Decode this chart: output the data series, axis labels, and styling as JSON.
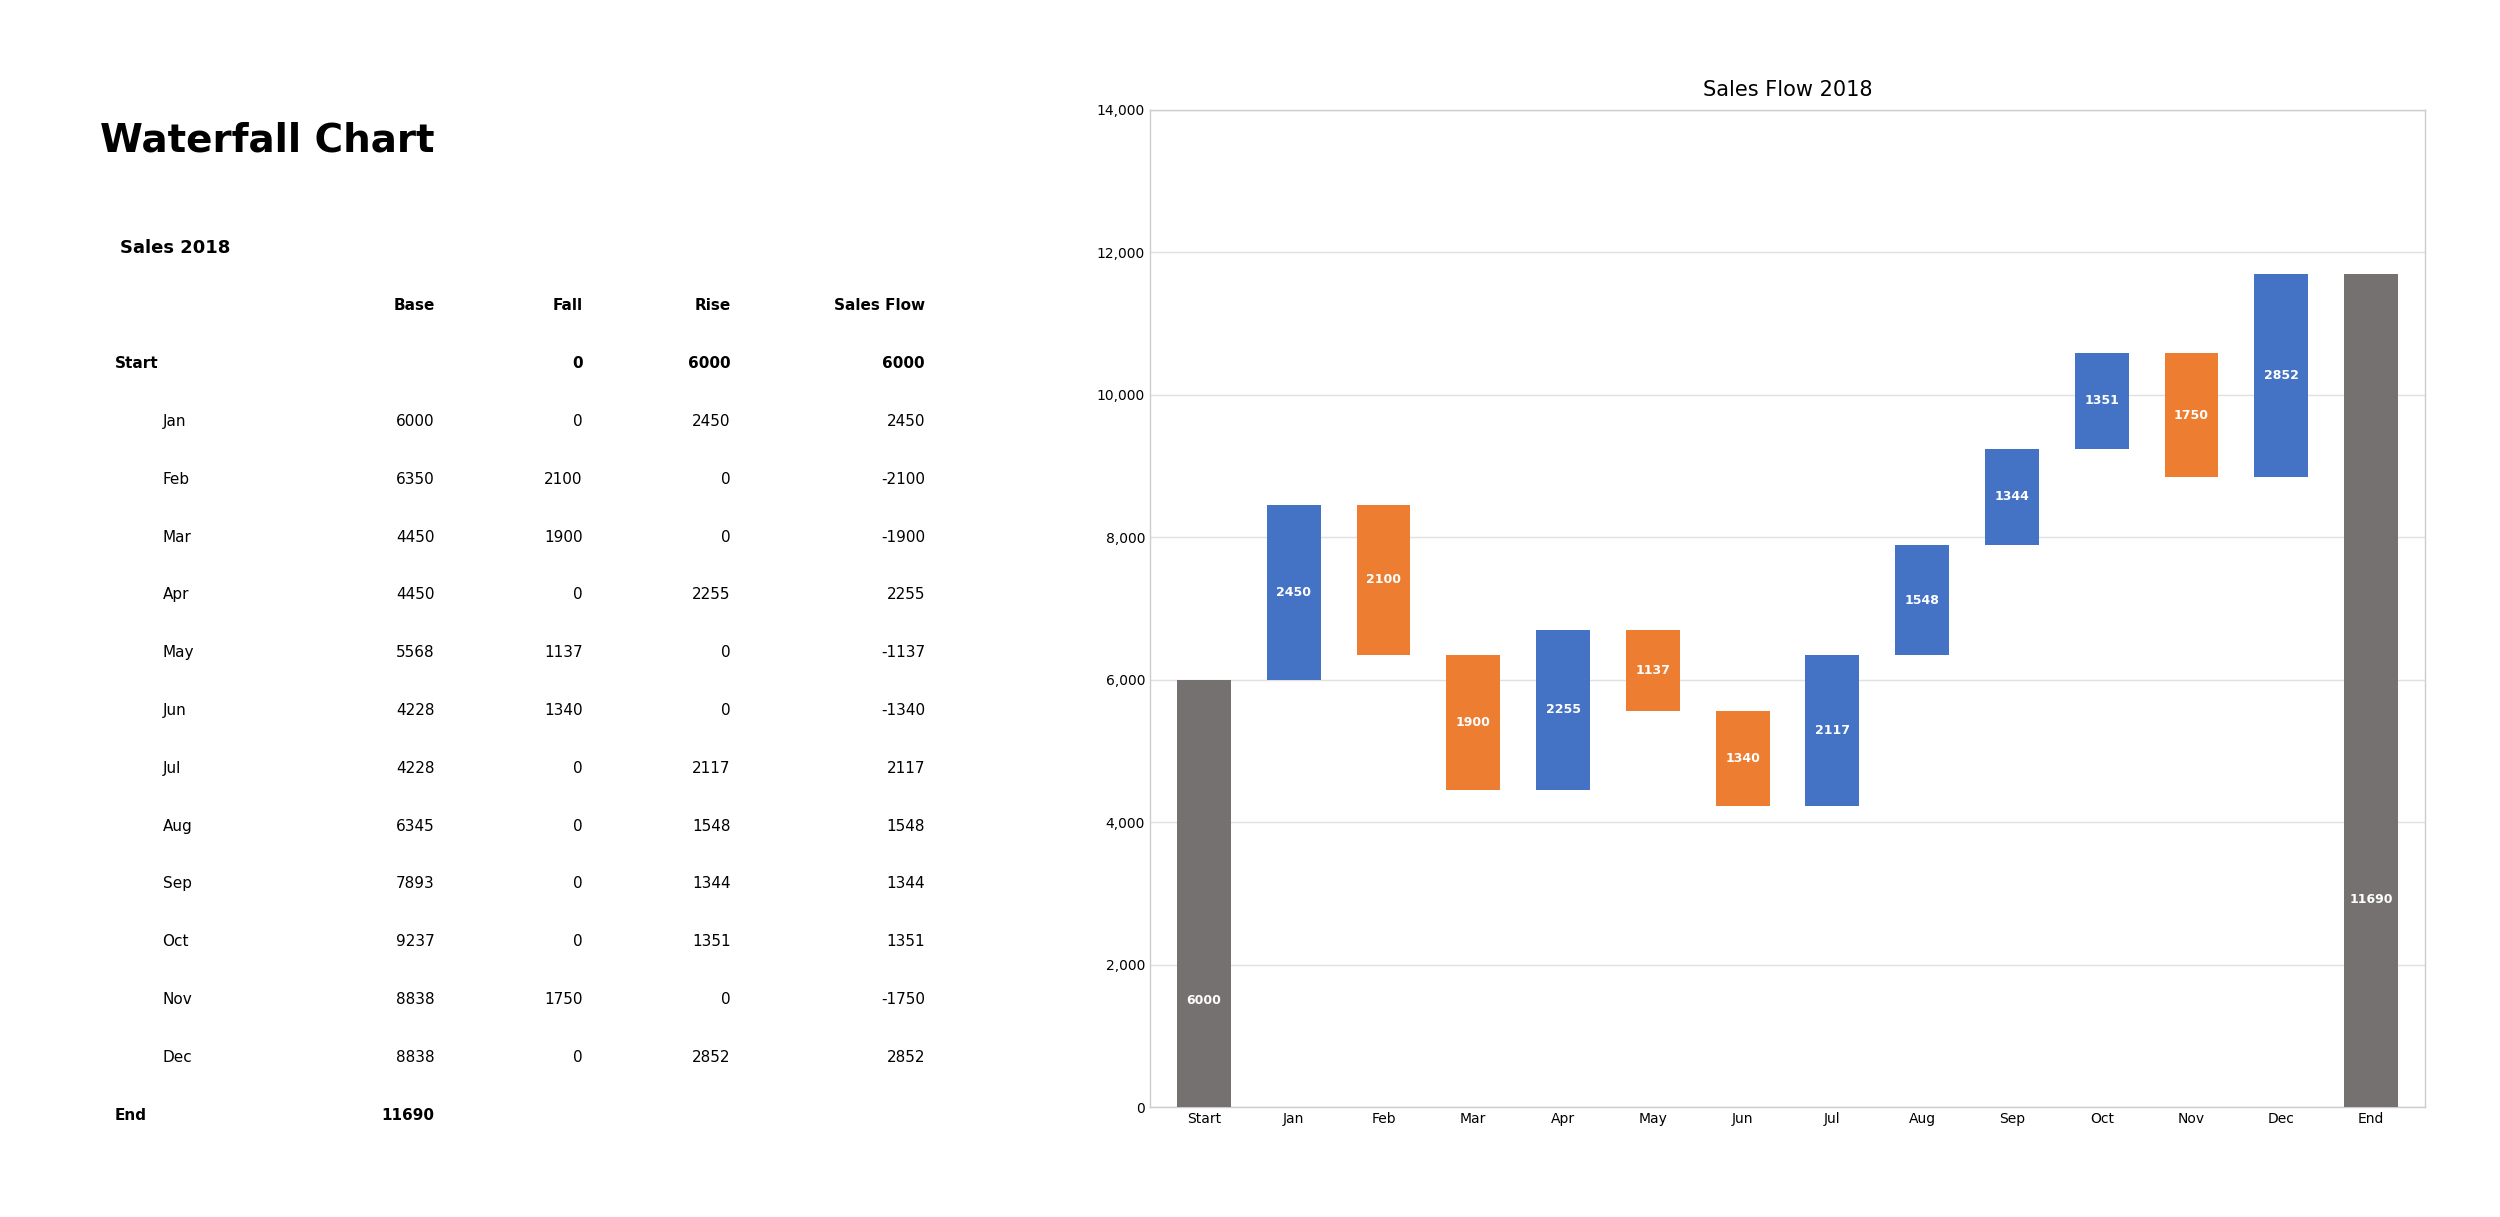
{
  "title": "Waterfall Chart",
  "table_title": "Sales 2018",
  "chart_title": "Sales Flow 2018",
  "categories": [
    "Start",
    "Jan",
    "Feb",
    "Mar",
    "Apr",
    "May",
    "Jun",
    "Jul",
    "Aug",
    "Sep",
    "Oct",
    "Nov",
    "Dec",
    "End"
  ],
  "base": [
    0,
    6000,
    6350,
    4450,
    4450,
    5568,
    4228,
    4228,
    6345,
    7893,
    9237,
    8838,
    8838,
    0
  ],
  "fall": [
    0,
    0,
    2100,
    1900,
    0,
    1137,
    1340,
    0,
    0,
    0,
    0,
    1750,
    0,
    0
  ],
  "rise": [
    6000,
    2450,
    0,
    0,
    2255,
    0,
    0,
    2117,
    1548,
    1344,
    1351,
    0,
    2852,
    11690
  ],
  "table_rows": [
    [
      "Start",
      "",
      "0",
      "6000",
      "6000"
    ],
    [
      "Jan",
      "6000",
      "0",
      "2450",
      "2450"
    ],
    [
      "Feb",
      "6350",
      "2100",
      "0",
      "-2100"
    ],
    [
      "Mar",
      "4450",
      "1900",
      "0",
      "-1900"
    ],
    [
      "Apr",
      "4450",
      "0",
      "2255",
      "2255"
    ],
    [
      "May",
      "5568",
      "1137",
      "0",
      "-1137"
    ],
    [
      "Jun",
      "4228",
      "1340",
      "0",
      "-1340"
    ],
    [
      "Jul",
      "4228",
      "0",
      "2117",
      "2117"
    ],
    [
      "Aug",
      "6345",
      "0",
      "1548",
      "1548"
    ],
    [
      "Sep",
      "7893",
      "0",
      "1344",
      "1344"
    ],
    [
      "Oct",
      "9237",
      "0",
      "1351",
      "1351"
    ],
    [
      "Nov",
      "8838",
      "1750",
      "0",
      "-1750"
    ],
    [
      "Dec",
      "8838",
      "0",
      "2852",
      "2852"
    ],
    [
      "End",
      "11690",
      "",
      "",
      ""
    ]
  ],
  "col_headers": [
    "",
    "Base",
    "Fall",
    "Rise",
    "Sales Flow"
  ],
  "gray_color": "#767171",
  "rise_color": "#4472C4",
  "fall_color": "#ED7D31",
  "table_header_bg": "#A6A6A6",
  "row_bg_start_end": "#C9C9C9",
  "row_bg_white": "#FFFFFF",
  "row_bg_blue": "#BDD7EE",
  "ylim": [
    0,
    14000
  ],
  "yticks": [
    0,
    2000,
    4000,
    6000,
    8000,
    10000,
    12000,
    14000
  ],
  "background_color": "#FFFFFF",
  "chart_bg": "#FFFFFF",
  "chart_border": "#CCCCCC",
  "grid_color": "#E0E0E0"
}
